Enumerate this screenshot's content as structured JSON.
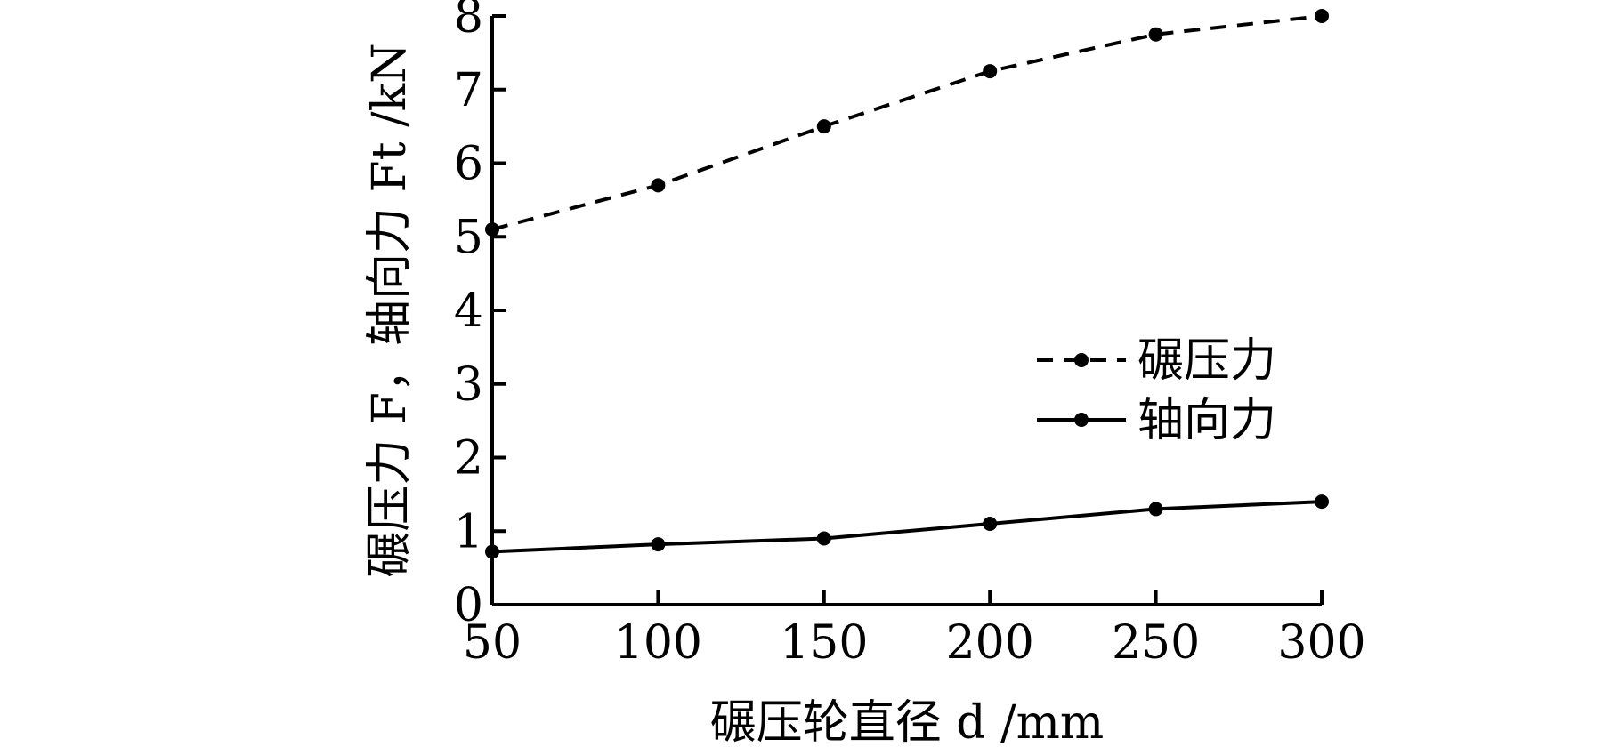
{
  "chart_data": {
    "type": "line",
    "xlabel": "碾压轮直径 d /mm",
    "ylabel": "碾压力 F，轴向力 Ft /kN",
    "x": [
      50,
      100,
      150,
      200,
      250,
      300
    ],
    "xlim": [
      50,
      300
    ],
    "ylim": [
      0,
      8
    ],
    "xticks": [
      "50",
      "100",
      "150",
      "200",
      "250",
      "300"
    ],
    "yticks": [
      "0",
      "1",
      "2",
      "3",
      "4",
      "5",
      "6",
      "7",
      "8"
    ],
    "grid": false,
    "legend_position": "center-right",
    "series": [
      {
        "name": "碾压力",
        "style": "dashed",
        "color": "#000000",
        "values": [
          5.1,
          5.7,
          6.5,
          7.25,
          7.75,
          8.0
        ]
      },
      {
        "name": "轴向力",
        "style": "solid",
        "color": "#000000",
        "values": [
          0.72,
          0.82,
          0.9,
          1.1,
          1.3,
          1.4
        ]
      }
    ]
  }
}
